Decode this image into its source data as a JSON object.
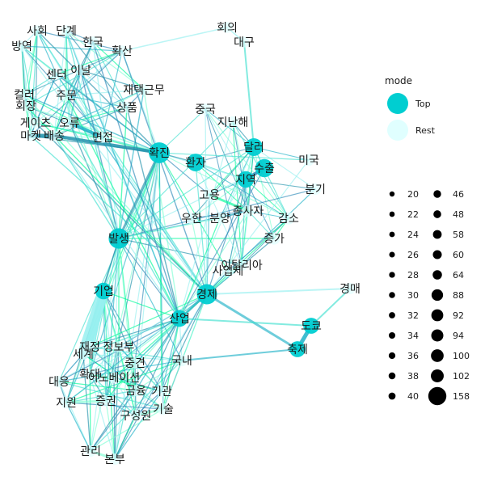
{
  "colors": {
    "top": "#00CED1",
    "rest": "#E0FFFF",
    "edge_palette": [
      "#1E90AA",
      "#20B2C8",
      "#40E0D0",
      "#7FFFD4",
      "#97F0F0",
      "#00FA9A",
      "#2E8BB8"
    ]
  },
  "legend": {
    "mode_title": "mode",
    "mode_items": [
      "Top",
      "Rest"
    ],
    "sizes": [
      "20",
      "22",
      "24",
      "26",
      "28",
      "30",
      "32",
      "34",
      "36",
      "38",
      "40",
      "46",
      "48",
      "58",
      "60",
      "64",
      "88",
      "92",
      "94",
      "100",
      "102",
      "158"
    ]
  },
  "graph": {
    "nodes": [
      {
        "label": "사회",
        "mode": "Rest",
        "size": 20
      },
      {
        "label": "단계",
        "mode": "Rest",
        "size": 20
      },
      {
        "label": "회의",
        "mode": "Rest",
        "size": 20
      },
      {
        "label": "방역",
        "mode": "Rest",
        "size": 22
      },
      {
        "label": "한국",
        "mode": "Rest",
        "size": 24
      },
      {
        "label": "확산",
        "mode": "Rest",
        "size": 22
      },
      {
        "label": "대구",
        "mode": "Rest",
        "size": 20
      },
      {
        "label": "이날",
        "mode": "Rest",
        "size": 24
      },
      {
        "label": "센터",
        "mode": "Rest",
        "size": 22
      },
      {
        "label": "재택근무",
        "mode": "Rest",
        "size": 26
      },
      {
        "label": "컬러",
        "mode": "Rest",
        "size": 20
      },
      {
        "label": "주문",
        "mode": "Rest",
        "size": 20
      },
      {
        "label": "회장",
        "mode": "Rest",
        "size": 20
      },
      {
        "label": "상품",
        "mode": "Rest",
        "size": 24
      },
      {
        "label": "중국",
        "mode": "Rest",
        "size": 24
      },
      {
        "label": "게이츠",
        "mode": "Rest",
        "size": 22
      },
      {
        "label": "오류",
        "mode": "Rest",
        "size": 22
      },
      {
        "label": "지난해",
        "mode": "Rest",
        "size": 28
      },
      {
        "label": "마켓",
        "mode": "Rest",
        "size": 20
      },
      {
        "label": "배송",
        "mode": "Rest",
        "size": 22
      },
      {
        "label": "면접",
        "mode": "Rest",
        "size": 24
      },
      {
        "label": "달러",
        "mode": "Top",
        "size": 60
      },
      {
        "label": "확진",
        "mode": "Top",
        "size": 102
      },
      {
        "label": "미국",
        "mode": "Rest",
        "size": 28
      },
      {
        "label": "환자",
        "mode": "Top",
        "size": 58
      },
      {
        "label": "수출",
        "mode": "Top",
        "size": 64
      },
      {
        "label": "지역",
        "mode": "Top",
        "size": 46
      },
      {
        "label": "분기",
        "mode": "Rest",
        "size": 28
      },
      {
        "label": "고용",
        "mode": "Rest",
        "size": 34
      },
      {
        "label": "종사자",
        "mode": "Rest",
        "size": 32
      },
      {
        "label": "우한",
        "mode": "Rest",
        "size": 30
      },
      {
        "label": "분양",
        "mode": "Rest",
        "size": 30
      },
      {
        "label": "감소",
        "mode": "Rest",
        "size": 38
      },
      {
        "label": "발생",
        "mode": "Top",
        "size": 94
      },
      {
        "label": "증가",
        "mode": "Rest",
        "size": 36
      },
      {
        "label": "사업체",
        "mode": "Rest",
        "size": 30
      },
      {
        "label": "이탈리아",
        "mode": "Rest",
        "size": 26
      },
      {
        "label": "기업",
        "mode": "Top",
        "size": 46
      },
      {
        "label": "경제",
        "mode": "Top",
        "size": 92
      },
      {
        "label": "경매",
        "mode": "Rest",
        "size": 24
      },
      {
        "label": "산업",
        "mode": "Top",
        "size": 48
      },
      {
        "label": "도쿄",
        "mode": "Top",
        "size": 40
      },
      {
        "label": "축제",
        "mode": "Top",
        "size": 40
      },
      {
        "label": "재정",
        "mode": "Rest",
        "size": 24
      },
      {
        "label": "정보부",
        "mode": "Rest",
        "size": 24
      },
      {
        "label": "세계",
        "mode": "Rest",
        "size": 26
      },
      {
        "label": "중견",
        "mode": "Rest",
        "size": 24
      },
      {
        "label": "국내",
        "mode": "Rest",
        "size": 28
      },
      {
        "label": "확대",
        "mode": "Rest",
        "size": 22
      },
      {
        "label": "대응",
        "mode": "Rest",
        "size": 28
      },
      {
        "label": "이노베이션",
        "mode": "Rest",
        "size": 24
      },
      {
        "label": "금융",
        "mode": "Rest",
        "size": 24
      },
      {
        "label": "기관",
        "mode": "Rest",
        "size": 24
      },
      {
        "label": "지원",
        "mode": "Rest",
        "size": 30
      },
      {
        "label": "증권",
        "mode": "Rest",
        "size": 28
      },
      {
        "label": "기술",
        "mode": "Rest",
        "size": 30
      },
      {
        "label": "구성원",
        "mode": "Rest",
        "size": 24
      },
      {
        "label": "관리",
        "mode": "Rest",
        "size": 28
      },
      {
        "label": "본부",
        "mode": "Rest",
        "size": 26
      }
    ]
  }
}
